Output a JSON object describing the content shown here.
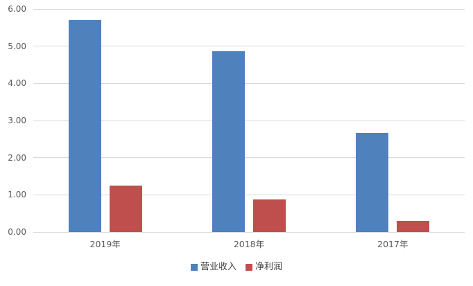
{
  "chart_data": {
    "type": "bar",
    "title": "",
    "xlabel": "",
    "ylabel": "",
    "categories": [
      "2019年",
      "2018年",
      "2017年"
    ],
    "series": [
      {
        "name": "营业收入",
        "color": "#4f81bc",
        "values": [
          5.7,
          4.86,
          2.67
        ]
      },
      {
        "name": "净利润",
        "color": "#bf4f4c",
        "values": [
          1.25,
          0.88,
          0.3
        ]
      }
    ],
    "ylim": [
      0,
      6
    ],
    "ytick_labels": [
      "0.00",
      "1.00",
      "2.00",
      "3.00",
      "4.00",
      "5.00",
      "6.00"
    ],
    "grid": true,
    "legend_position": "bottom",
    "colors": {
      "background": "#ffffff",
      "gridline": "#d9d9d9",
      "axis_text": "#595959",
      "legend_text": "#404040"
    }
  }
}
